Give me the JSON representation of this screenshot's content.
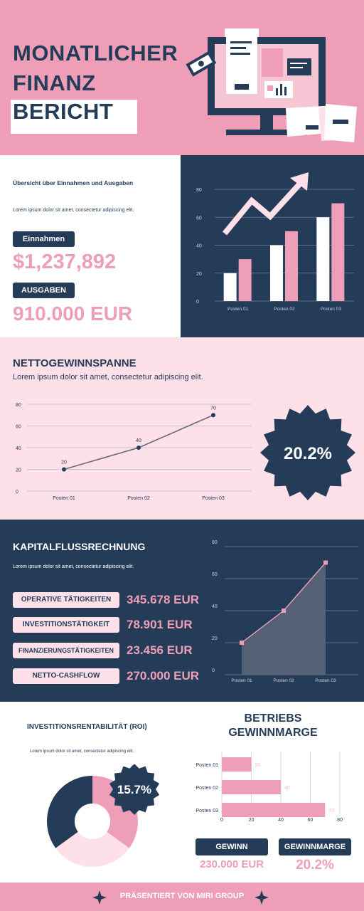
{
  "header": {
    "title_lines": [
      "MONATLICHER",
      "FINANZ",
      "BERICHT"
    ]
  },
  "overview": {
    "heading": "Übersicht über Einnahmen und Ausgaben",
    "text": "Lorem ipsum dolor sit amet, consectetur adipiscing elit.",
    "income_label": "Einnahmen",
    "income_value": "$1,237,892",
    "expense_label": "AUSGABEN",
    "expense_value": "910.000 EUR"
  },
  "margin": {
    "heading": "NETTOGEWINNSPANNE",
    "text": "Lorem ipsum dolor sit amet, consectetur adipiscing elit.",
    "badge": "20.2%"
  },
  "cashflow": {
    "heading": "KAPITALFLUSSRECHNUNG",
    "text": "Lorem ipsum dolor sit amet, consectetur adipiscing elit.",
    "rows": [
      {
        "label": "OPERATIVE TÄTIGKEITEN",
        "value": "345.678 EUR"
      },
      {
        "label": "INVESTITIONSTÄTIGKEIT",
        "value": "78.901 EUR"
      },
      {
        "label": "FINANZIERUNGSTÄTIGKEITEN",
        "value": "23.456 EUR"
      },
      {
        "label": "NETTO-CASHFLOW",
        "value": "270.000 EUR"
      }
    ]
  },
  "roi": {
    "heading": "INVESTITIONSRENTABILITÄT (ROI)",
    "text": "Lorem ipsum dolor sit amet, consectetur adipiscing elit.",
    "badge": "15.7%"
  },
  "operating": {
    "heading_line1": "BETRIEBS",
    "heading_line2": "GEWINNMARGE",
    "profit_label": "GEWINN",
    "profit_value": "230.000 EUR",
    "margin_label": "GEWINNMARGE",
    "margin_value": "20.2%"
  },
  "footer": {
    "text": "PRÄSENTIERT VON MIRI GROUP"
  },
  "colors": {
    "navy": "#253c59",
    "pink": "#ee9fb7",
    "light_pink": "#fde0e8",
    "white": "#ffffff"
  },
  "chart_data": [
    {
      "id": "income-expense-bars",
      "type": "bar",
      "categories": [
        "Posten 01",
        "Posten 02",
        "Posten 03"
      ],
      "series": [
        {
          "values": [
            20,
            40,
            60
          ],
          "color": "#ffffff"
        },
        {
          "values": [
            30,
            50,
            70
          ],
          "color": "#ee9fb7"
        }
      ],
      "yticks": [
        0,
        20,
        40,
        60,
        80
      ],
      "ylim": [
        0,
        80
      ],
      "grid": true
    },
    {
      "id": "net-margin-line",
      "type": "line",
      "categories": [
        "Posten 01",
        "Posten 02",
        "Posten 03"
      ],
      "values": [
        20,
        40,
        70
      ],
      "data_labels": [
        "20",
        "40",
        "70"
      ],
      "yticks": [
        0,
        20,
        40,
        60,
        80
      ],
      "ylim": [
        0,
        80
      ],
      "grid": true
    },
    {
      "id": "cashflow-area",
      "type": "area",
      "categories": [
        "Posten 01",
        "Posten 02",
        "Posten 03"
      ],
      "values": [
        20,
        40,
        70
      ],
      "yticks": [
        0,
        20,
        40,
        60,
        80
      ],
      "ylim": [
        0,
        80
      ],
      "grid": true
    },
    {
      "id": "roi-donut",
      "type": "pie",
      "values": [
        35,
        30,
        35
      ],
      "colors": [
        "#ee9fb7",
        "#fde0e8",
        "#253c59"
      ]
    },
    {
      "id": "operating-hbar",
      "type": "bar",
      "orientation": "horizontal",
      "categories": [
        "Posten 01",
        "Posten 02",
        "Posten 03"
      ],
      "values": [
        20,
        40,
        70
      ],
      "data_labels": [
        "20",
        "40",
        "70"
      ],
      "xticks": [
        0,
        20,
        40,
        60,
        80
      ],
      "xlim": [
        0,
        80
      ],
      "grid": true
    }
  ]
}
